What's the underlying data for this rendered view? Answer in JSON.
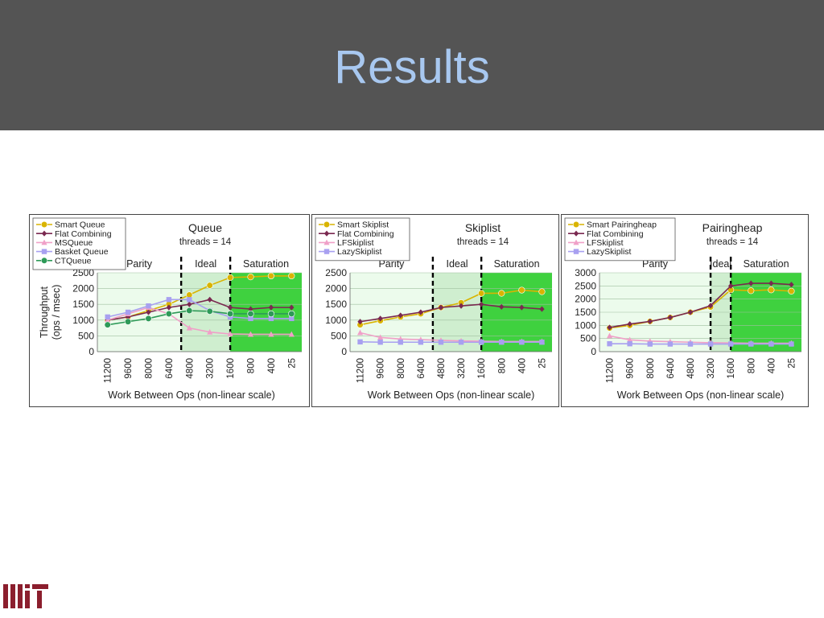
{
  "slide": {
    "title": "Results"
  },
  "colors": {
    "smart": "#d9b400",
    "flat": "#7a2950",
    "ms": "#f0a0c8",
    "basket": "#a8a0f0",
    "ct": "#2e9a58",
    "sat_green": "#3fd13f",
    "ideal_green": "#cfeecf",
    "parity_green": "#ecfbec"
  },
  "logo": {
    "name": "MIT"
  },
  "chart_data": [
    {
      "type": "line",
      "title": "Queue",
      "subtitle": "threads = 14",
      "xlabel": "Work Between Ops (non-linear scale)",
      "ylabel": "Throughput (ops / msec)",
      "ylabel_lines": [
        "Throughput",
        "(ops / msec)"
      ],
      "categories": [
        "11200",
        "9600",
        "8000",
        "6400",
        "4800",
        "3200",
        "1600",
        "800",
        "400",
        "25"
      ],
      "ylim": [
        0,
        2500
      ],
      "yticks": [
        "0",
        "500",
        "1000",
        "1500",
        "2000",
        "2500"
      ],
      "regions": [
        {
          "label": "Parity",
          "from": 0,
          "to": 3.6
        },
        {
          "label": "Ideal",
          "from": 3.6,
          "to": 6
        },
        {
          "label": "Saturation",
          "from": 6,
          "to": 9.5
        }
      ],
      "series": [
        {
          "name": "Smart Queue",
          "color": "smart",
          "marker": "circle",
          "values": [
            1000,
            1100,
            1300,
            1500,
            1800,
            2100,
            2350,
            2370,
            2400,
            2400
          ]
        },
        {
          "name": "Flat Combining",
          "color": "flat",
          "marker": "diamond",
          "values": [
            1000,
            1100,
            1250,
            1400,
            1500,
            1650,
            1400,
            1350,
            1400,
            1400
          ]
        },
        {
          "name": "MSQueue",
          "color": "ms",
          "marker": "triangle",
          "values": [
            1000,
            1200,
            1400,
            1200,
            750,
            620,
            560,
            550,
            550,
            550
          ]
        },
        {
          "name": "Basket Queue",
          "color": "basket",
          "marker": "square",
          "values": [
            1100,
            1250,
            1450,
            1650,
            1650,
            1300,
            1100,
            1050,
            1050,
            1050
          ]
        },
        {
          "name": "CTQueue",
          "color": "ct",
          "marker": "circle",
          "values": [
            850,
            950,
            1050,
            1200,
            1300,
            1280,
            1200,
            1200,
            1200,
            1200
          ]
        }
      ]
    },
    {
      "type": "line",
      "title": "Skiplist",
      "subtitle": "threads = 14",
      "xlabel": "Work Between Ops (non-linear scale)",
      "categories": [
        "11200",
        "9600",
        "8000",
        "6400",
        "4800",
        "3200",
        "1600",
        "800",
        "400",
        "25"
      ],
      "ylim": [
        0,
        2500
      ],
      "yticks": [
        "0",
        "500",
        "1000",
        "1500",
        "2000",
        "2500"
      ],
      "regions": [
        {
          "label": "Parity",
          "from": 0,
          "to": 3.6
        },
        {
          "label": "Ideal",
          "from": 3.6,
          "to": 6
        },
        {
          "label": "Saturation",
          "from": 6,
          "to": 9.5
        }
      ],
      "series": [
        {
          "name": "Smart Skiplist",
          "color": "smart",
          "marker": "circle",
          "values": [
            850,
            980,
            1100,
            1200,
            1400,
            1550,
            1850,
            1850,
            1950,
            1900
          ]
        },
        {
          "name": "Flat Combining",
          "color": "flat",
          "marker": "diamond",
          "values": [
            950,
            1050,
            1150,
            1250,
            1400,
            1450,
            1500,
            1420,
            1400,
            1350
          ]
        },
        {
          "name": "LFSkiplist",
          "color": "ms",
          "marker": "triangle",
          "values": [
            600,
            450,
            400,
            380,
            360,
            340,
            330,
            320,
            320,
            320
          ]
        },
        {
          "name": "LazySkiplist",
          "color": "basket",
          "marker": "square",
          "values": [
            310,
            300,
            300,
            300,
            300,
            300,
            300,
            300,
            300,
            300
          ]
        }
      ]
    },
    {
      "type": "line",
      "title": "Pairingheap",
      "subtitle": "threads = 14",
      "xlabel": "Work Between Ops (non-linear scale)",
      "categories": [
        "11200",
        "9600",
        "8000",
        "6400",
        "4800",
        "3200",
        "1600",
        "800",
        "400",
        "25"
      ],
      "ylim": [
        0,
        3000
      ],
      "yticks": [
        "0",
        "500",
        "1000",
        "1500",
        "2000",
        "2500",
        "3000"
      ],
      "regions": [
        {
          "label": "Parity",
          "from": 0,
          "to": 5
        },
        {
          "label": "Ideal",
          "from": 5,
          "to": 6
        },
        {
          "label": "Saturation",
          "from": 6,
          "to": 9.5
        }
      ],
      "series": [
        {
          "name": "Smart Pairingheap",
          "color": "smart",
          "marker": "circle",
          "values": [
            900,
            1000,
            1150,
            1300,
            1500,
            1700,
            2350,
            2320,
            2350,
            2300
          ]
        },
        {
          "name": "Flat Combining",
          "color": "flat",
          "marker": "diamond",
          "values": [
            920,
            1050,
            1150,
            1300,
            1500,
            1750,
            2500,
            2600,
            2600,
            2550
          ]
        },
        {
          "name": "LFSkiplist",
          "color": "ms",
          "marker": "triangle",
          "values": [
            600,
            450,
            400,
            380,
            360,
            340,
            330,
            320,
            320,
            320
          ]
        },
        {
          "name": "LazySkiplist",
          "color": "basket",
          "marker": "square",
          "values": [
            300,
            300,
            290,
            290,
            290,
            290,
            290,
            290,
            290,
            290
          ]
        }
      ]
    }
  ]
}
